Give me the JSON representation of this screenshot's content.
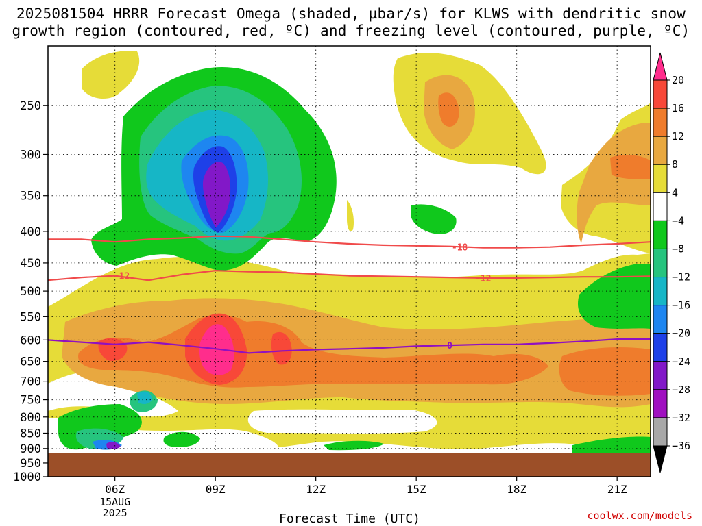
{
  "title_line1": "2025081504 HRRR Forecast Omega (shaded, µbar/s) for KLWS with dendritic snow",
  "title_line2": "growth region (contoured, red, ºC) and freezing level (contoured, purple, ºC)",
  "credit": "coolwx.com/models",
  "chart_data": {
    "type": "time-height cross-section (filled contours)",
    "xlabel": "Forecast Time (UTC)",
    "x_ticks": [
      {
        "label": "06Z",
        "sub": [
          "15AUG",
          "2025"
        ],
        "hour": 6
      },
      {
        "label": "09Z",
        "sub": [],
        "hour": 9
      },
      {
        "label": "12Z",
        "sub": [],
        "hour": 12
      },
      {
        "label": "15Z",
        "sub": [],
        "hour": 15
      },
      {
        "label": "18Z",
        "sub": [],
        "hour": 18
      },
      {
        "label": "21Z",
        "sub": [],
        "hour": 21
      }
    ],
    "xlim_hours": [
      4,
      22
    ],
    "y_ticks": [
      250,
      300,
      350,
      400,
      450,
      500,
      550,
      600,
      650,
      700,
      750,
      800,
      850,
      900,
      950,
      1000
    ],
    "ylim_hPa": [
      200,
      1000
    ],
    "y_scale": "log-pressure",
    "grid": true,
    "colorbar": {
      "labels": [
        "20",
        "16",
        "12",
        "8",
        "4",
        "−4",
        "−8",
        "−12",
        "−16",
        "−20",
        "−24",
        "−28",
        "−32",
        "−36"
      ],
      "colors": [
        "#ff2d8c",
        "#f84838",
        "#ef7c2c",
        "#e8a840",
        "#e6dc38",
        "#ffffff",
        "#10c81c",
        "#26c47e",
        "#16b6c6",
        "#1e86f0",
        "#1e40e8",
        "#8218c8",
        "#a010c0",
        "#a8a8a8",
        "#000000"
      ]
    },
    "contours": [
      {
        "label": "-18",
        "color": "#f04a4a",
        "points": [
          [
            4,
            412
          ],
          [
            5,
            412
          ],
          [
            6,
            416
          ],
          [
            7,
            412
          ],
          [
            8,
            410
          ],
          [
            9,
            407
          ],
          [
            10,
            408
          ],
          [
            11,
            412
          ],
          [
            12,
            416
          ],
          [
            13,
            419
          ],
          [
            14,
            421
          ],
          [
            15,
            422
          ],
          [
            16,
            423
          ],
          [
            17,
            425
          ],
          [
            18,
            425
          ],
          [
            19,
            424
          ],
          [
            20,
            421
          ],
          [
            21,
            419
          ],
          [
            22,
            416
          ]
        ],
        "label_hour": 16.3
      },
      {
        "label": "-12",
        "color": "#f04a4a",
        "points": [
          [
            4,
            480
          ],
          [
            5,
            475
          ],
          [
            6,
            472
          ],
          [
            7,
            480
          ],
          [
            8,
            470
          ],
          [
            9,
            463
          ],
          [
            10,
            465
          ],
          [
            11,
            466
          ],
          [
            12,
            469
          ],
          [
            13,
            472
          ],
          [
            14,
            473
          ],
          [
            15,
            474
          ],
          [
            16,
            475
          ],
          [
            17,
            476
          ],
          [
            18,
            476
          ],
          [
            19,
            475
          ],
          [
            20,
            474
          ],
          [
            21,
            474
          ],
          [
            22,
            473
          ]
        ],
        "label_hour": 17.0
      },
      {
        "label": "-12",
        "color": "#f04a4a",
        "points": [],
        "label_hour": 6.2,
        "label_hPa": 472
      },
      {
        "label": "0",
        "color": "#9010c0",
        "points": [
          [
            4,
            600
          ],
          [
            5,
            605
          ],
          [
            6,
            610
          ],
          [
            7,
            605
          ],
          [
            8,
            612
          ],
          [
            9,
            620
          ],
          [
            10,
            630
          ],
          [
            11,
            625
          ],
          [
            12,
            622
          ],
          [
            13,
            620
          ],
          [
            14,
            618
          ],
          [
            15,
            614
          ],
          [
            16,
            612
          ],
          [
            17,
            610
          ],
          [
            18,
            610
          ],
          [
            19,
            607
          ],
          [
            20,
            603
          ],
          [
            21,
            598
          ],
          [
            22,
            598
          ]
        ],
        "label_hour": 16.0
      }
    ],
    "ground_top_hPa": 965
  }
}
